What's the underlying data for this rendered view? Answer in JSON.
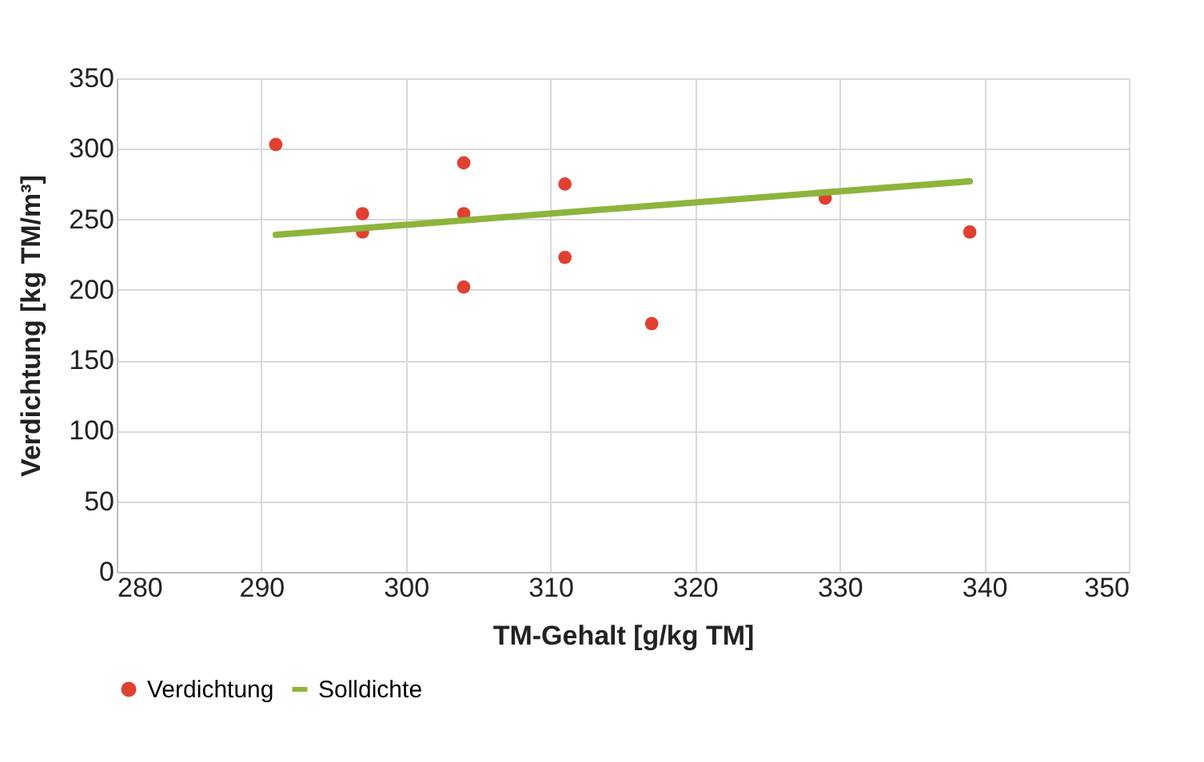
{
  "chart_data": {
    "type": "scatter",
    "xlabel": "TM-Gehalt [g/kg TM]",
    "ylabel": "Verdichtung [kg TM/m³]",
    "xlim": [
      280,
      350
    ],
    "xticks": [
      280,
      290,
      300,
      310,
      320,
      330,
      340,
      350
    ],
    "ylim": [
      0,
      350
    ],
    "yticks": [
      0,
      50,
      100,
      150,
      200,
      250,
      300,
      350
    ],
    "grid": true,
    "legend": "bottom",
    "series": [
      {
        "name": "Verdichtung",
        "marker": "circle",
        "color": "#e04030",
        "x": [
          291,
          297,
          297,
          304,
          304,
          304,
          311,
          311,
          317,
          329,
          339
        ],
        "values": [
          303,
          254,
          241,
          290,
          254,
          202,
          275,
          223,
          176,
          265,
          241
        ]
      },
      {
        "name": "Solldichte",
        "type": "line",
        "color": "#8db53c",
        "x": [
          291,
          339
        ],
        "values": [
          239,
          277
        ]
      }
    ]
  }
}
